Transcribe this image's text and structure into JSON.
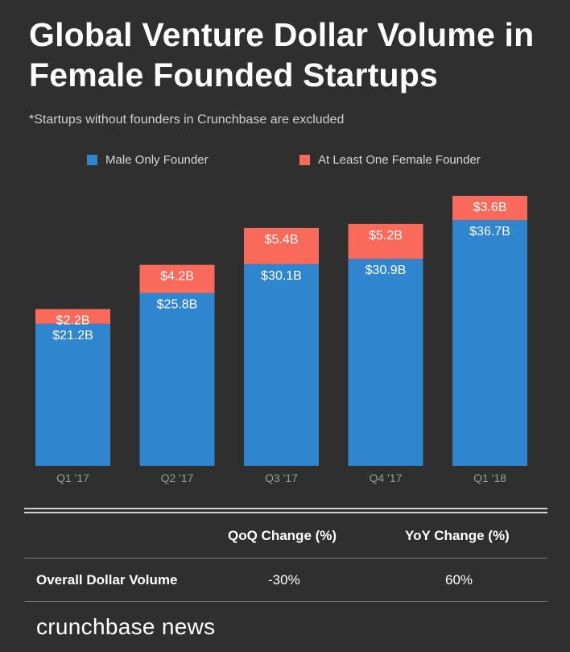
{
  "title": "Global Venture Dollar Volume in Female Founded Startups",
  "subtitle": "*Startups without founders in Crunchbase are excluded",
  "colors": {
    "male": "#2f86cf",
    "female": "#fa6a5b",
    "background": "#2f2f2f"
  },
  "chart_data": {
    "type": "bar",
    "stacked": true,
    "title": "Global Venture Dollar Volume in Female Founded Startups",
    "categories": [
      "Q1 '17",
      "Q2 '17",
      "Q3 '17",
      "Q4 '17",
      "Q1 '18"
    ],
    "series": [
      {
        "name": "Male Only Founder",
        "values": [
          21.2,
          25.8,
          30.1,
          30.9,
          36.7
        ],
        "labels": [
          "$21.2B",
          "$25.8B",
          "$30.1B",
          "$30.9B",
          "$36.7B"
        ]
      },
      {
        "name": "At Least One Female Founder",
        "values": [
          2.2,
          4.2,
          5.4,
          5.2,
          3.6
        ],
        "labels": [
          "$2.2B",
          "$4.2B",
          "$5.4B",
          "$5.2B",
          "$3.6B"
        ]
      }
    ],
    "xlabel": "",
    "ylabel": "",
    "ylim": [
      0,
      40.3
    ],
    "legend": "top"
  },
  "table": {
    "headers": [
      "QoQ Change (%)",
      "YoY Change (%)"
    ],
    "row_label": "Overall Dollar Volume",
    "values": [
      "-30%",
      "60%"
    ]
  },
  "brand": "crunchbase news"
}
